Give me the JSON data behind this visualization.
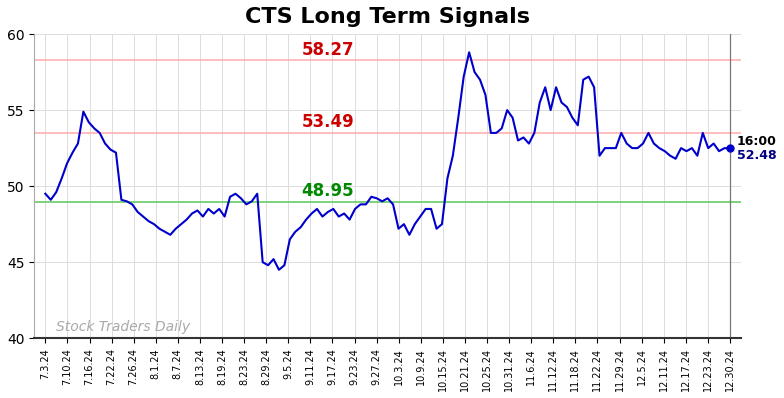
{
  "title": "CTS Long Term Signals",
  "title_fontsize": 16,
  "title_fontweight": "bold",
  "ylim": [
    40,
    60
  ],
  "yticks": [
    40,
    45,
    50,
    55,
    60
  ],
  "line_color": "#0000CC",
  "line_width": 1.5,
  "hline_upper": 58.27,
  "hline_upper_color": "#FFB0B0",
  "hline_mid": 53.49,
  "hline_mid_color": "#FFB0B0",
  "hline_lower": 48.95,
  "hline_lower_color": "#66CC66",
  "hline_linewidth": 1.2,
  "label_upper_text": "58.27",
  "label_upper_color": "#CC0000",
  "label_mid_text": "53.49",
  "label_mid_color": "#CC0000",
  "label_lower_text": "48.95",
  "label_lower_color": "#008800",
  "label_fontsize": 12,
  "label_fontweight": "bold",
  "watermark_text": "Stock Traders Daily",
  "watermark_color": "#AAAAAA",
  "watermark_fontsize": 10,
  "endlabel_time": "16:00",
  "endlabel_price": "52.48",
  "endlabel_color": "#000080",
  "endmarker_color": "#0000CC",
  "grid_color": "#DDDDDD",
  "bg_color": "#FFFFFF",
  "xtick_labels": [
    "7.3.24",
    "7.10.24",
    "7.16.24",
    "7.22.24",
    "7.26.24",
    "8.1.24",
    "8.7.24",
    "8.13.24",
    "8.19.24",
    "8.23.24",
    "8.29.24",
    "9.5.24",
    "9.11.24",
    "9.17.24",
    "9.23.24",
    "9.27.24",
    "10.3.24",
    "10.9.24",
    "10.15.24",
    "10.21.24",
    "10.25.24",
    "10.31.24",
    "11.6.24",
    "11.12.24",
    "11.18.24",
    "11.22.24",
    "11.29.24",
    "12.5.24",
    "12.11.24",
    "12.17.24",
    "12.23.24",
    "12.30.24"
  ],
  "prices": [
    49.5,
    49.1,
    49.6,
    50.5,
    51.5,
    52.2,
    52.8,
    54.9,
    54.2,
    53.8,
    53.5,
    52.8,
    52.4,
    52.2,
    49.1,
    49.0,
    48.8,
    48.3,
    48.0,
    47.7,
    47.5,
    47.2,
    47.0,
    46.8,
    47.2,
    47.5,
    47.8,
    48.2,
    48.4,
    48.0,
    48.5,
    48.2,
    48.5,
    48.0,
    49.3,
    49.5,
    49.2,
    48.8,
    49.0,
    49.5,
    45.0,
    44.8,
    45.2,
    44.5,
    44.8,
    46.5,
    47.0,
    47.3,
    47.8,
    48.2,
    48.5,
    48.0,
    48.3,
    48.5,
    48.0,
    48.2,
    47.8,
    48.5,
    48.8,
    48.8,
    49.3,
    49.2,
    49.0,
    49.2,
    48.8,
    47.2,
    47.5,
    46.8,
    47.5,
    48.0,
    48.5,
    48.5,
    47.2,
    47.5,
    50.5,
    52.0,
    54.5,
    57.2,
    58.8,
    57.5,
    57.0,
    56.0,
    53.5,
    53.5,
    53.8,
    55.0,
    54.5,
    53.0,
    53.2,
    52.8,
    53.5,
    55.5,
    56.5,
    55.0,
    56.5,
    55.5,
    55.2,
    54.5,
    54.0,
    57.0,
    57.2,
    56.5,
    52.0,
    52.5,
    52.5,
    52.5,
    53.5,
    52.8,
    52.5,
    52.5,
    52.8,
    53.5,
    52.8,
    52.5,
    52.3,
    52.0,
    51.8,
    52.5,
    52.3,
    52.5,
    52.0,
    53.5,
    52.5,
    52.8,
    52.3,
    52.5,
    52.48
  ]
}
